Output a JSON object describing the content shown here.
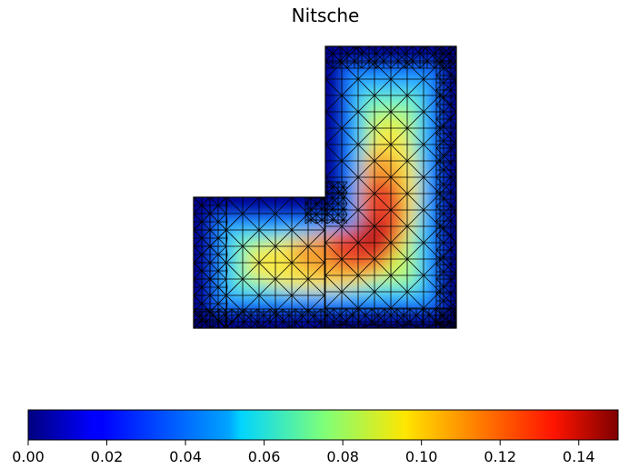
{
  "chart_data": {
    "type": "heatmap",
    "title": "Nitsche",
    "colormap": "jet",
    "colorbar": {
      "orientation": "horizontal",
      "range": [
        0.0,
        0.15
      ],
      "ticks": [
        0.0,
        0.02,
        0.04,
        0.06,
        0.08,
        0.1,
        0.12,
        0.14
      ],
      "tick_labels": [
        "0.00",
        "0.02",
        "0.04",
        "0.06",
        "0.08",
        "0.10",
        "0.12",
        "0.14"
      ]
    },
    "domain_shape": "L-shaped",
    "mesh": "triangular",
    "max_value": 0.15,
    "boundary_value": 0.0
  }
}
